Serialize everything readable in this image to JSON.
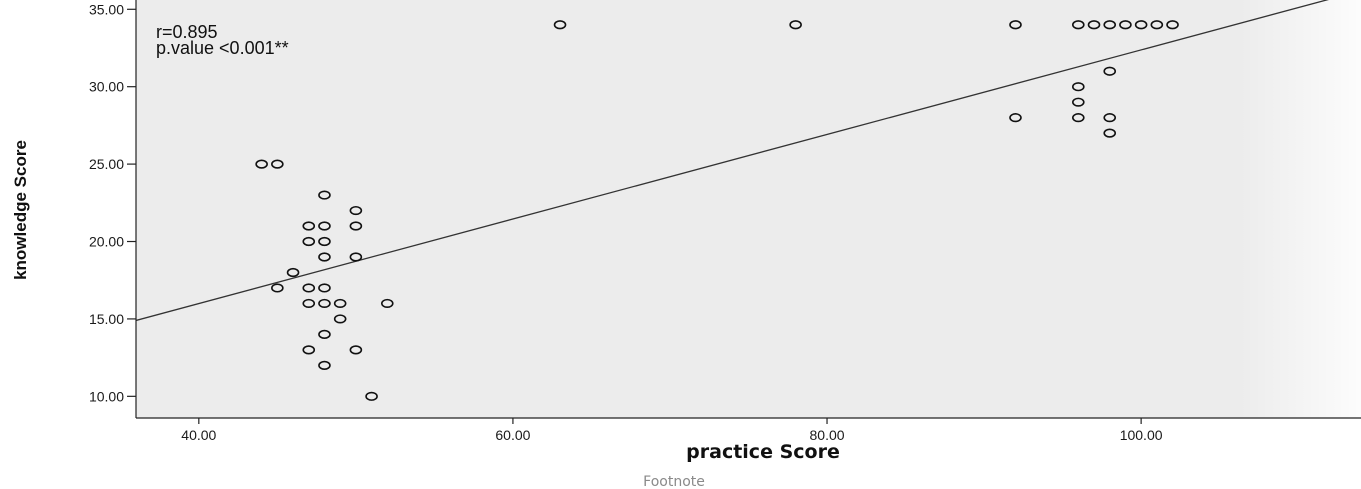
{
  "chart_data": {
    "type": "scatter",
    "xlabel": "practice Score",
    "ylabel": "knowledge Score",
    "xlim": [
      36,
      114
    ],
    "ylim": [
      8.6,
      35.6
    ],
    "x_ticks": [
      "40.00",
      "60.00",
      "80.00",
      "100.00"
    ],
    "x_tick_values": [
      40,
      60,
      80,
      100
    ],
    "y_ticks": [
      "10.00",
      "15.00",
      "20.00",
      "25.00",
      "30.00",
      "35.00"
    ],
    "y_tick_values": [
      10,
      15,
      20,
      25,
      30,
      35
    ],
    "annotations": [
      "r=0.895",
      "p.value <0.001**"
    ],
    "footnote": "Footnote",
    "grid": false,
    "fit_line": {
      "x": [
        36,
        114
      ],
      "y": [
        14.9,
        36.2
      ]
    },
    "points": [
      {
        "x": 44,
        "y": 25
      },
      {
        "x": 45,
        "y": 25
      },
      {
        "x": 48,
        "y": 23
      },
      {
        "x": 50,
        "y": 22
      },
      {
        "x": 47,
        "y": 21
      },
      {
        "x": 48,
        "y": 21
      },
      {
        "x": 50,
        "y": 21
      },
      {
        "x": 47,
        "y": 20
      },
      {
        "x": 48,
        "y": 20
      },
      {
        "x": 48,
        "y": 19
      },
      {
        "x": 50,
        "y": 19
      },
      {
        "x": 46,
        "y": 18
      },
      {
        "x": 45,
        "y": 17
      },
      {
        "x": 47,
        "y": 17
      },
      {
        "x": 48,
        "y": 17
      },
      {
        "x": 47,
        "y": 16
      },
      {
        "x": 48,
        "y": 16
      },
      {
        "x": 49,
        "y": 16
      },
      {
        "x": 52,
        "y": 16
      },
      {
        "x": 49,
        "y": 15
      },
      {
        "x": 48,
        "y": 14
      },
      {
        "x": 47,
        "y": 13
      },
      {
        "x": 50,
        "y": 13
      },
      {
        "x": 48,
        "y": 12
      },
      {
        "x": 51,
        "y": 10
      },
      {
        "x": 63,
        "y": 34
      },
      {
        "x": 78,
        "y": 34
      },
      {
        "x": 92,
        "y": 34
      },
      {
        "x": 96,
        "y": 34
      },
      {
        "x": 97,
        "y": 34
      },
      {
        "x": 98,
        "y": 34
      },
      {
        "x": 99,
        "y": 34
      },
      {
        "x": 100,
        "y": 34
      },
      {
        "x": 101,
        "y": 34
      },
      {
        "x": 102,
        "y": 34
      },
      {
        "x": 98,
        "y": 31
      },
      {
        "x": 96,
        "y": 30
      },
      {
        "x": 96,
        "y": 29
      },
      {
        "x": 92,
        "y": 28
      },
      {
        "x": 96,
        "y": 28
      },
      {
        "x": 98,
        "y": 28
      },
      {
        "x": 98,
        "y": 27
      }
    ]
  },
  "colors": {
    "plot_background": "#ececec",
    "marker_stroke": "#111111",
    "fit_line": "#333333",
    "axis": "#222222",
    "footnote_text": "#8a8a8a"
  }
}
